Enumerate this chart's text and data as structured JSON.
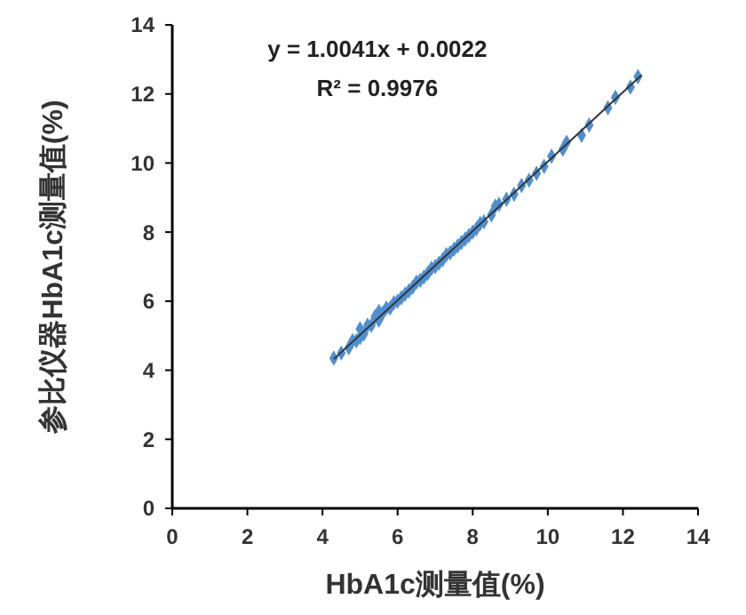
{
  "chart_data": {
    "type": "scatter",
    "xlabel": "HbA1c测量值(%)",
    "ylabel": "参比仪器HbA1c测量值(%)",
    "xlim": [
      0,
      14
    ],
    "ylim": [
      0,
      14
    ],
    "xticks": [
      0,
      2,
      4,
      6,
      8,
      10,
      12,
      14
    ],
    "yticks": [
      0,
      2,
      4,
      6,
      8,
      10,
      12,
      14
    ],
    "grid": false,
    "marker": "diamond",
    "annotations": [
      "y = 1.0041x + 0.0022",
      "R² = 0.9976"
    ],
    "series": [
      {
        "color": "#4f8fd0",
        "x": [
          4.3,
          4.5,
          4.7,
          4.8,
          4.9,
          5.0,
          5.0,
          5.1,
          5.2,
          5.3,
          5.4,
          5.5,
          5.5,
          5.6,
          5.7,
          5.8,
          5.9,
          6.0,
          6.1,
          6.2,
          6.3,
          6.4,
          6.5,
          6.6,
          6.7,
          6.8,
          6.9,
          7.0,
          7.1,
          7.2,
          7.3,
          7.4,
          7.5,
          7.6,
          7.7,
          7.8,
          7.9,
          8.0,
          8.1,
          8.2,
          8.3,
          8.5,
          8.6,
          8.7,
          8.9,
          9.1,
          9.3,
          9.5,
          9.7,
          9.9,
          10.1,
          10.4,
          10.5,
          10.9,
          11.1,
          11.6,
          11.8,
          12.2,
          12.4
        ],
        "values": [
          4.35,
          4.5,
          4.65,
          4.85,
          4.85,
          4.95,
          5.2,
          5.05,
          5.3,
          5.3,
          5.55,
          5.45,
          5.7,
          5.65,
          5.8,
          5.8,
          5.95,
          6.0,
          6.1,
          6.2,
          6.3,
          6.4,
          6.55,
          6.6,
          6.7,
          6.8,
          6.95,
          7.0,
          7.1,
          7.2,
          7.35,
          7.4,
          7.5,
          7.6,
          7.7,
          7.8,
          7.9,
          8.0,
          8.1,
          8.25,
          8.3,
          8.5,
          8.75,
          8.8,
          8.95,
          9.1,
          9.35,
          9.5,
          9.7,
          9.9,
          10.2,
          10.4,
          10.6,
          10.8,
          11.1,
          11.6,
          11.9,
          12.2,
          12.5
        ]
      },
      {
        "type": "line",
        "color": "#333333",
        "marker": "none",
        "x": [
          4.3,
          12.5
        ],
        "values": [
          4.32,
          12.55
        ]
      }
    ]
  }
}
